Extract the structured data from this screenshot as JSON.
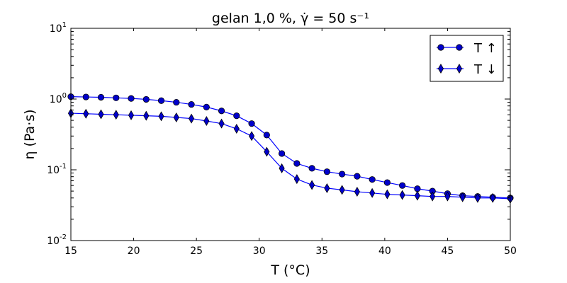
{
  "chart_data": {
    "type": "line",
    "title": "gelan 1,0 %, γ̇ = 50 s⁻¹",
    "xlabel": "T (°C)",
    "ylabel": "η (Pa·s)",
    "xlim": [
      15,
      50
    ],
    "ylim": [
      0.01,
      10
    ],
    "yscale": "log",
    "x_ticks": [
      "15",
      "20",
      "25",
      "30",
      "35",
      "40",
      "45",
      "50"
    ],
    "y_ticks": [
      {
        "value": 0.01,
        "base": "10",
        "exp": "-2"
      },
      {
        "value": 0.1,
        "base": "10",
        "exp": "-1"
      },
      {
        "value": 1,
        "base": "10",
        "exp": "0"
      },
      {
        "value": 10,
        "base": "10",
        "exp": "1"
      }
    ],
    "grid": false,
    "legend_position": "top-right",
    "colors": {
      "series": "#0000ff",
      "marker_fill": "#0000cc",
      "axis": "#000000"
    },
    "series": [
      {
        "name": "T ↑",
        "marker": "circle",
        "x": [
          15.0,
          16.2,
          17.4,
          18.6,
          19.8,
          21.0,
          22.2,
          23.4,
          24.6,
          25.8,
          27.0,
          28.2,
          29.4,
          30.6,
          31.8,
          33.0,
          34.2,
          35.4,
          36.6,
          37.8,
          39.0,
          40.2,
          41.4,
          42.6,
          43.8,
          45.0,
          46.2,
          47.4,
          48.6,
          50.0
        ],
        "y": [
          1.08,
          1.07,
          1.06,
          1.04,
          1.02,
          0.99,
          0.95,
          0.9,
          0.84,
          0.77,
          0.68,
          0.58,
          0.45,
          0.31,
          0.17,
          0.123,
          0.105,
          0.094,
          0.087,
          0.081,
          0.073,
          0.066,
          0.06,
          0.054,
          0.05,
          0.046,
          0.043,
          0.042,
          0.041,
          0.04
        ]
      },
      {
        "name": "T ↓",
        "marker": "thin_diamond",
        "x": [
          15.0,
          16.2,
          17.4,
          18.6,
          19.8,
          21.0,
          22.2,
          23.4,
          24.6,
          25.8,
          27.0,
          28.2,
          29.4,
          30.6,
          31.8,
          33.0,
          34.2,
          35.4,
          36.6,
          37.8,
          39.0,
          40.2,
          41.4,
          42.6,
          43.8,
          45.0,
          46.2,
          47.4,
          48.6,
          50.0
        ],
        "y": [
          0.63,
          0.62,
          0.61,
          0.6,
          0.59,
          0.58,
          0.57,
          0.55,
          0.53,
          0.49,
          0.45,
          0.38,
          0.3,
          0.18,
          0.105,
          0.074,
          0.061,
          0.055,
          0.052,
          0.049,
          0.047,
          0.045,
          0.044,
          0.043,
          0.042,
          0.042,
          0.041,
          0.04,
          0.04,
          0.039
        ]
      }
    ]
  }
}
